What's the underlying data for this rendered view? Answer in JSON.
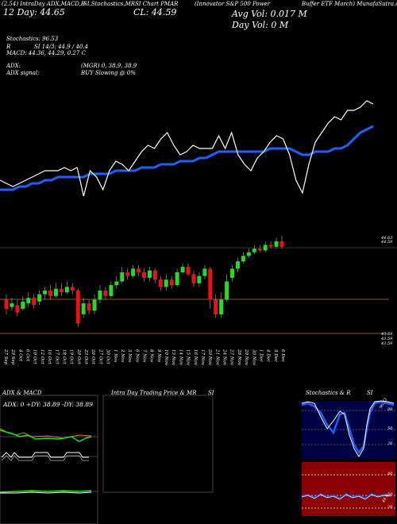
{
  "header": {
    "line1": [
      "(2.54) IntraDay ADX,MACD,B",
      "SI,Stochastics,MR",
      "SI Chart PMAR",
      "(Innovator S&P 500 Power",
      "Buffer ETF March) MunafaSutra.com"
    ],
    "line2": [
      "12 Day: 44.65",
      "CL: 44.59"
    ],
    "avg_vol": "Avg Vol: 0.017 M",
    "day_vol": "Day Vol: 0   M"
  },
  "stats": {
    "stochastics": "Stochastics: 96.53",
    "r": "R",
    "si": "SI 14/3: 44.9 / 40.4",
    "macd": "MACD: 44.36, 44.29, 0.27 C",
    "adx": "ADX:",
    "mgr": "(MGR) 0, 38.9, 38.9",
    "adx_signal": "ADX signal:",
    "buy": "BUY Slowing @ 0%"
  },
  "price_labels": {
    "top1": "44.63",
    "top2": "44.59",
    "bottom1": "43.59",
    "bottom2": "43.59",
    "bottom3": "43.59"
  },
  "x_labels": [
    "27 Sep",
    "29 Sep",
    "4 Oct",
    "6 Oct",
    "10 Oct",
    "12 Oct",
    "16 Oct",
    "17 Oct",
    "18 Oct",
    "19 Oct",
    "20 Oct",
    "23 Oct",
    "26 Oct",
    "27 Oct",
    "30 Oct",
    "1 Nov",
    "2 Nov",
    "3 Nov",
    "6 Nov",
    "7 Nov",
    "8 Nov",
    "9 Nov",
    "10 Nov",
    "13 Nov",
    "14 Nov",
    "15 Nov",
    "16 Nov",
    "17 Nov",
    "20 Nov",
    "21 Nov",
    "24 Nov",
    "27 Nov",
    "28 Nov",
    "29 Nov",
    "30 Nov",
    "1 Dec",
    "4 Dec",
    "5 Dec",
    "6 Dec"
  ],
  "panels": {
    "adx_title": "ADX  & MACD",
    "adx_text": "ADX: 0  +DY: 38.89 -DY: 38.89",
    "mr_title": "Intra  Day Trading Price  & MR",
    "mr_si": "SI",
    "stoch_title": "Stochastics & R",
    "stoch_si": "SI",
    "stoch_ticks": [
      "80",
      "50",
      "20"
    ],
    "rsi_ticks": [
      "80",
      "50",
      "20"
    ],
    "stoch_val": "96.53",
    "rsi_val": "44.9"
  },
  "colors": {
    "bull": "#22dd22",
    "bear": "#ee1111",
    "ema": "#1f5fff",
    "rsi_bg": "#8b0000",
    "stoch_bg": "#000044"
  },
  "chart_data": {
    "type": "candlestick",
    "price_line": [
      44.47,
      44.46,
      44.45,
      44.46,
      44.47,
      44.48,
      44.49,
      44.5,
      44.5,
      44.5,
      44.51,
      44.5,
      44.51,
      44.42,
      44.5,
      44.48,
      44.44,
      44.5,
      44.53,
      44.52,
      44.5,
      44.53,
      44.56,
      44.58,
      44.57,
      44.6,
      44.62,
      44.58,
      44.55,
      44.56,
      44.58,
      44.57,
      44.57,
      44.57,
      44.61,
      44.57,
      44.62,
      44.55,
      44.52,
      44.5,
      44.54,
      44.56,
      44.59,
      44.61,
      44.6,
      44.55,
      44.47,
      44.43,
      44.52,
      44.59,
      44.62,
      44.65,
      44.67,
      44.66,
      44.69,
      44.69,
      44.7,
      44.72,
      44.71
    ],
    "ema_line": [
      44.44,
      44.44,
      44.44,
      44.45,
      44.45,
      44.46,
      44.46,
      44.47,
      44.47,
      44.48,
      44.48,
      44.48,
      44.48,
      44.48,
      44.49,
      44.49,
      44.49,
      44.49,
      44.5,
      44.5,
      44.5,
      44.5,
      44.51,
      44.51,
      44.51,
      44.52,
      44.52,
      44.52,
      44.53,
      44.53,
      44.53,
      44.54,
      44.54,
      44.55,
      44.56,
      44.56,
      44.56,
      44.56,
      44.56,
      44.56,
      44.56,
      44.56,
      44.57,
      44.57,
      44.57,
      44.57,
      44.56,
      44.55,
      44.55,
      44.56,
      44.56,
      44.56,
      44.57,
      44.57,
      44.58,
      44.6,
      44.62,
      44.63,
      44.64
    ],
    "candles": [
      {
        "o": 44.3,
        "c": 44.25,
        "h": 44.33,
        "l": 44.22
      },
      {
        "o": 44.26,
        "c": 44.28,
        "h": 44.31,
        "l": 44.24
      },
      {
        "o": 44.27,
        "c": 44.23,
        "h": 44.3,
        "l": 44.21
      },
      {
        "o": 44.25,
        "c": 44.29,
        "h": 44.32,
        "l": 44.24
      },
      {
        "o": 44.28,
        "c": 44.31,
        "h": 44.34,
        "l": 44.26
      },
      {
        "o": 44.31,
        "c": 44.27,
        "h": 44.33,
        "l": 44.25
      },
      {
        "o": 44.29,
        "c": 44.33,
        "h": 44.35,
        "l": 44.27
      },
      {
        "o": 44.33,
        "c": 44.35,
        "h": 44.37,
        "l": 44.3
      },
      {
        "o": 44.35,
        "c": 44.32,
        "h": 44.38,
        "l": 44.3
      },
      {
        "o": 44.32,
        "c": 44.36,
        "h": 44.39,
        "l": 44.31
      },
      {
        "o": 44.36,
        "c": 44.34,
        "h": 44.39,
        "l": 44.32
      },
      {
        "o": 44.34,
        "c": 44.37,
        "h": 44.4,
        "l": 44.33
      },
      {
        "o": 44.37,
        "c": 44.35,
        "h": 44.39,
        "l": 44.33
      },
      {
        "o": 44.35,
        "c": 44.17,
        "h": 44.36,
        "l": 44.15
      },
      {
        "o": 44.22,
        "c": 44.28,
        "h": 44.31,
        "l": 44.2
      },
      {
        "o": 44.28,
        "c": 44.24,
        "h": 44.3,
        "l": 44.22
      },
      {
        "o": 44.24,
        "c": 44.3,
        "h": 44.33,
        "l": 44.22
      },
      {
        "o": 44.3,
        "c": 44.35,
        "h": 44.38,
        "l": 44.28
      },
      {
        "o": 44.35,
        "c": 44.32,
        "h": 44.37,
        "l": 44.3
      },
      {
        "o": 44.32,
        "c": 44.38,
        "h": 44.4,
        "l": 44.31
      },
      {
        "o": 44.38,
        "c": 44.4,
        "h": 44.43,
        "l": 44.36
      },
      {
        "o": 44.4,
        "c": 44.45,
        "h": 44.48,
        "l": 44.39
      },
      {
        "o": 44.45,
        "c": 44.43,
        "h": 44.47,
        "l": 44.41
      },
      {
        "o": 44.43,
        "c": 44.47,
        "h": 44.49,
        "l": 44.42
      },
      {
        "o": 44.47,
        "c": 44.45,
        "h": 44.49,
        "l": 44.43
      },
      {
        "o": 44.45,
        "c": 44.42,
        "h": 44.47,
        "l": 44.4
      },
      {
        "o": 44.42,
        "c": 44.46,
        "h": 44.48,
        "l": 44.4
      },
      {
        "o": 44.46,
        "c": 44.41,
        "h": 44.47,
        "l": 44.39
      },
      {
        "o": 44.41,
        "c": 44.37,
        "h": 44.43,
        "l": 44.35
      },
      {
        "o": 44.37,
        "c": 44.41,
        "h": 44.44,
        "l": 44.35
      },
      {
        "o": 44.41,
        "c": 44.38,
        "h": 44.43,
        "l": 44.36
      },
      {
        "o": 44.38,
        "c": 44.45,
        "h": 44.47,
        "l": 44.37
      },
      {
        "o": 44.45,
        "c": 44.48,
        "h": 44.5,
        "l": 44.44
      },
      {
        "o": 44.48,
        "c": 44.44,
        "h": 44.5,
        "l": 44.43
      },
      {
        "o": 44.44,
        "c": 44.39,
        "h": 44.46,
        "l": 44.37
      },
      {
        "o": 44.39,
        "c": 44.43,
        "h": 44.45,
        "l": 44.37
      },
      {
        "o": 44.43,
        "c": 44.47,
        "h": 44.49,
        "l": 44.41
      },
      {
        "o": 44.47,
        "c": 44.3,
        "h": 44.48,
        "l": 44.25
      },
      {
        "o": 44.3,
        "c": 44.22,
        "h": 44.33,
        "l": 44.2
      },
      {
        "o": 44.22,
        "c": 44.3,
        "h": 44.34,
        "l": 44.2
      },
      {
        "o": 44.3,
        "c": 44.4,
        "h": 44.44,
        "l": 44.29
      },
      {
        "o": 44.42,
        "c": 44.47,
        "h": 44.49,
        "l": 44.4
      },
      {
        "o": 44.47,
        "c": 44.51,
        "h": 44.53,
        "l": 44.45
      },
      {
        "o": 44.51,
        "c": 44.54,
        "h": 44.56,
        "l": 44.5
      },
      {
        "o": 44.54,
        "c": 44.56,
        "h": 44.58,
        "l": 44.53
      },
      {
        "o": 44.56,
        "c": 44.58,
        "h": 44.6,
        "l": 44.55
      },
      {
        "o": 44.58,
        "c": 44.57,
        "h": 44.6,
        "l": 44.56
      },
      {
        "o": 44.57,
        "c": 44.6,
        "h": 44.62,
        "l": 44.56
      },
      {
        "o": 44.6,
        "c": 44.59,
        "h": 44.62,
        "l": 44.58
      },
      {
        "o": 44.59,
        "c": 44.62,
        "h": 44.64,
        "l": 44.58
      },
      {
        "o": 44.62,
        "c": 44.59,
        "h": 44.65,
        "l": 44.58
      }
    ]
  }
}
